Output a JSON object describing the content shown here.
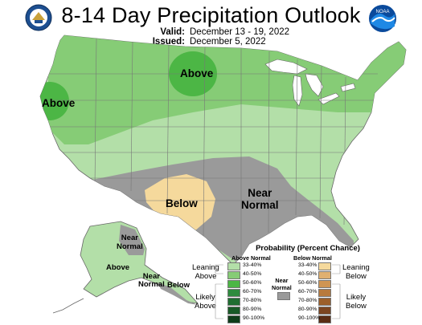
{
  "header": {
    "title": "8-14 Day Precipitation Outlook",
    "valid_label": "Valid:",
    "valid_value": "December 13 - 19, 2022",
    "issued_label": "Issued:",
    "issued_value": "December 5, 2022",
    "left_logo": "commerce-seal",
    "right_logo": "noaa-logo"
  },
  "map": {
    "labels": {
      "above_west": "Above",
      "above_north": "Above",
      "below_sw": "Below",
      "near_normal_south": "Near\nNormal",
      "near_normal_ak": "Near\nNormal",
      "above_ak": "Above",
      "near_normal_ak_south": "Near\nNormal",
      "below_ak": "Below"
    },
    "colors": {
      "above_33_40": "#b3dfa8",
      "above_40_50": "#86cc76",
      "above_50_60": "#4cb645",
      "near_normal": "#9a9a9a",
      "below_33_40": "#f5d99c",
      "state_lines": "#777777",
      "water": "#ffffff"
    }
  },
  "legend": {
    "title": "Probability (Percent Chance)",
    "above_header": "Above Normal",
    "below_header": "Below Normal",
    "near_header": "Near\nNormal",
    "leaning_above": "Leaning\nAbove",
    "likely_above": "Likely\nAbove",
    "leaning_below": "Leaning\nBelow",
    "likely_below": "Likely\nBelow",
    "above_rows": [
      {
        "label": "33-40%",
        "color": "#b3dfa8"
      },
      {
        "label": "40-50%",
        "color": "#86cc76"
      },
      {
        "label": "50-60%",
        "color": "#4cb645"
      },
      {
        "label": "60-70%",
        "color": "#2e8b3e"
      },
      {
        "label": "70-80%",
        "color": "#1f6e31"
      },
      {
        "label": "80-90%",
        "color": "#185a27"
      },
      {
        "label": "90-100%",
        "color": "#0f3d1a"
      }
    ],
    "below_rows": [
      {
        "label": "33-40%",
        "color": "#f5d99c"
      },
      {
        "label": "40-50%",
        "color": "#e0b070"
      },
      {
        "label": "50-60%",
        "color": "#cf9553"
      },
      {
        "label": "60-70%",
        "color": "#b87a3c"
      },
      {
        "label": "70-80%",
        "color": "#9c5f2a"
      },
      {
        "label": "80-90%",
        "color": "#7c4520"
      },
      {
        "label": "90-100%",
        "color": "#5a2d14"
      }
    ],
    "near_color": "#9a9a9a"
  }
}
